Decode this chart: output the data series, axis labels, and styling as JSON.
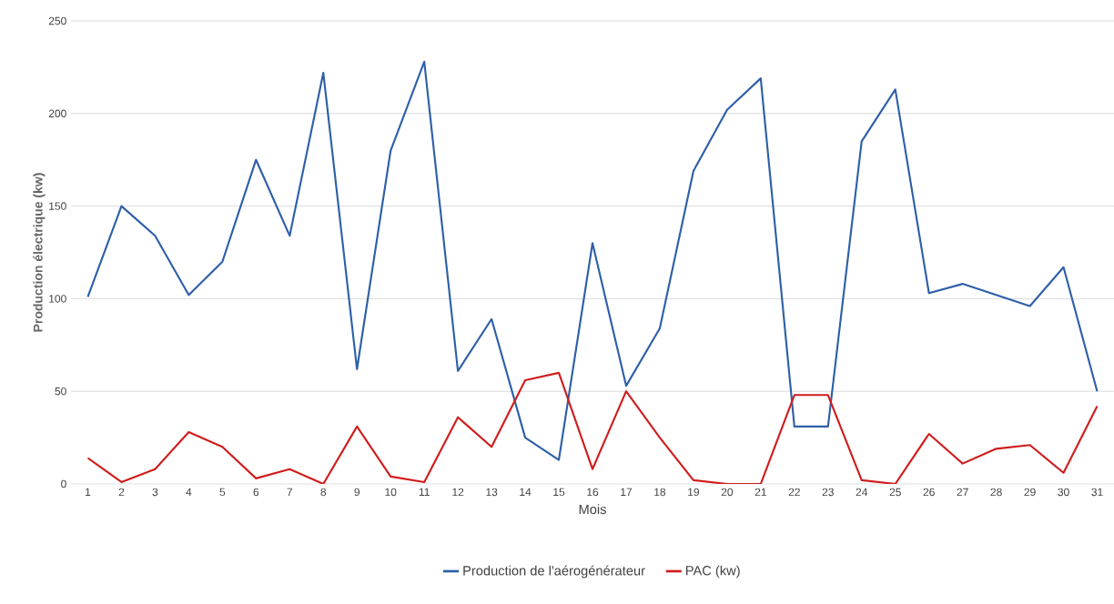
{
  "chart_data": {
    "type": "line",
    "xlabel": "Mois",
    "ylabel": "Production électrique (kw)",
    "categories": [
      "1",
      "2",
      "3",
      "4",
      "5",
      "6",
      "7",
      "8",
      "9",
      "10",
      "11",
      "12",
      "13",
      "14",
      "15",
      "16",
      "17",
      "18",
      "19",
      "20",
      "21",
      "22",
      "23",
      "24",
      "25",
      "26",
      "27",
      "28",
      "29",
      "30",
      "31"
    ],
    "series": [
      {
        "name": "Production de l'aérogénérateur",
        "color": "#2e5fa8",
        "values": [
          101,
          150,
          134,
          102,
          120,
          175,
          134,
          222,
          62,
          180,
          228,
          61,
          89,
          25,
          13,
          130,
          53,
          84,
          169,
          202,
          219,
          31,
          31,
          185,
          213,
          103,
          108,
          102,
          96,
          117,
          50
        ]
      },
      {
        "name": "PAC (kw)",
        "color": "#d01c1c",
        "values": [
          14,
          1,
          8,
          28,
          20,
          3,
          8,
          0,
          31,
          4,
          1,
          36,
          20,
          56,
          60,
          8,
          50,
          25,
          2,
          0,
          0,
          48,
          48,
          2,
          0,
          27,
          11,
          19,
          21,
          6,
          42
        ]
      }
    ],
    "ylim": [
      0,
      250
    ],
    "yticks": [
      0,
      50,
      100,
      150,
      200,
      250
    ],
    "grid": "y",
    "legend": "bottom",
    "marker": "none",
    "line_style": "solid"
  }
}
